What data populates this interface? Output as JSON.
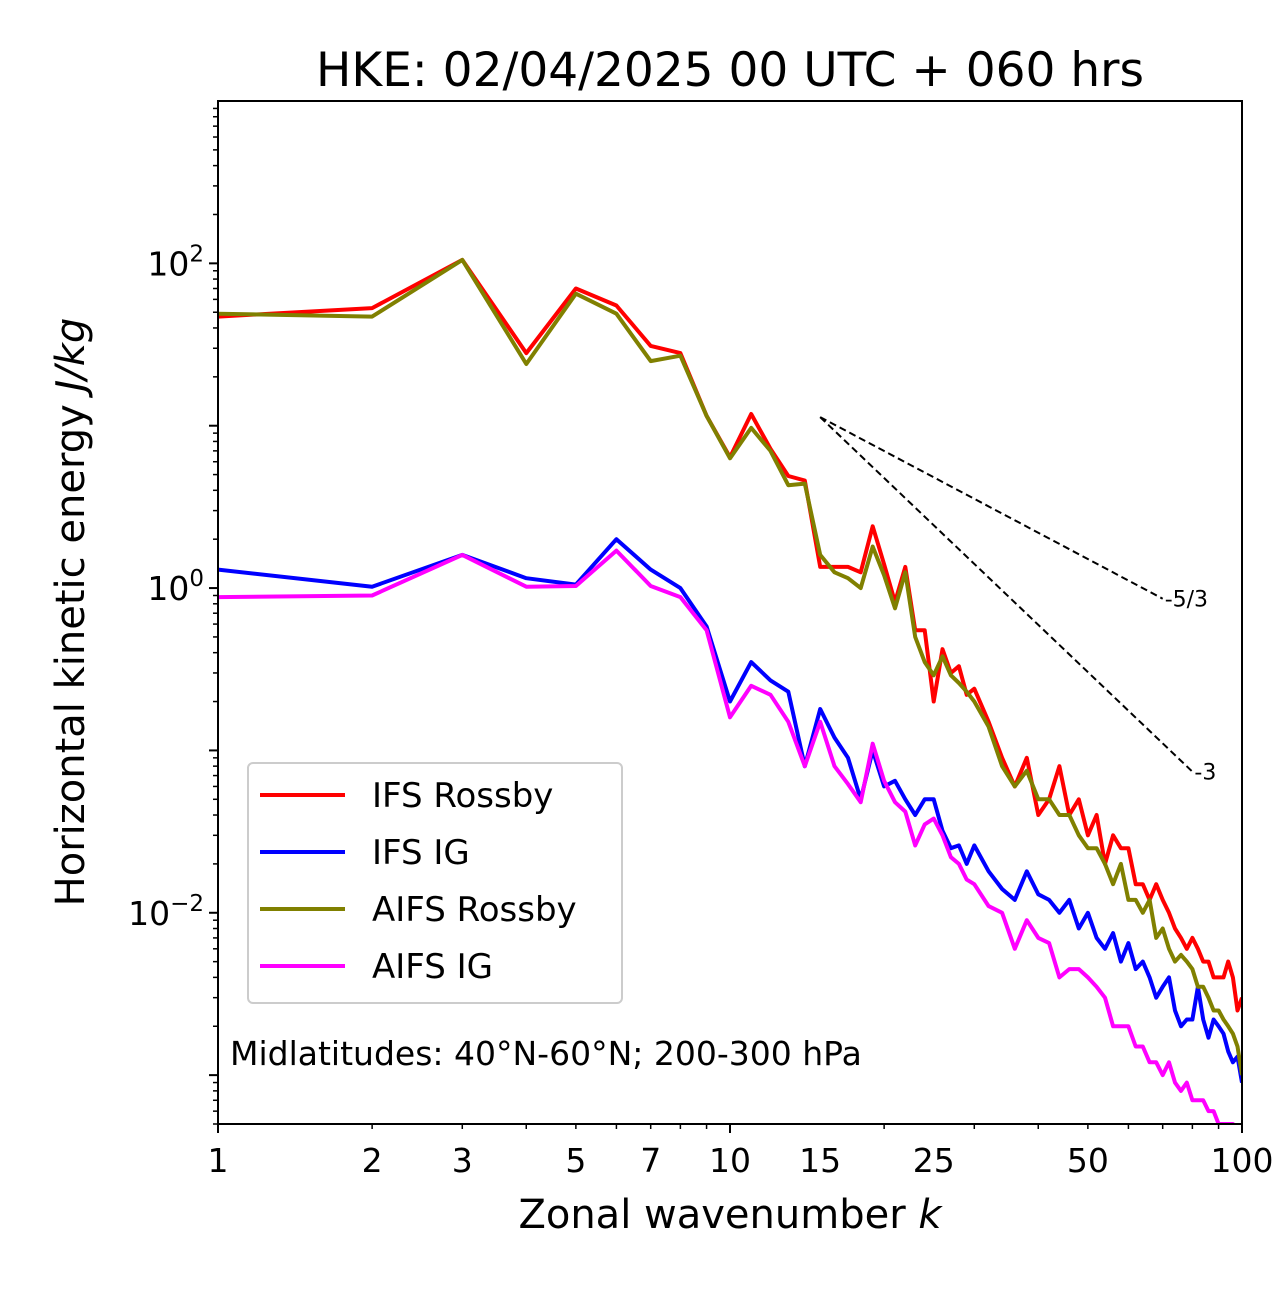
{
  "chart_data": {
    "type": "line",
    "title": "HKE: 02/04/2025 00 UTC + 060 hrs",
    "xlabel": "Zonal wavenumber",
    "xlabel_var": "k",
    "ylabel": "Horizontal kinetic energy",
    "ylabel_unit": "J/kg",
    "xscale": "log",
    "yscale": "log",
    "xlim": [
      1,
      100
    ],
    "ylim": [
      0.0005,
      1000
    ],
    "x_ticks": [
      1,
      2,
      3,
      5,
      7,
      10,
      15,
      25,
      50,
      100
    ],
    "x_tick_labels": [
      "1",
      "2",
      "3",
      "5",
      "7",
      "10",
      "15",
      "25",
      "50",
      "100"
    ],
    "y_ticks": [
      0.01,
      1,
      100
    ],
    "y_tick_labels": [
      {
        "base": "10",
        "exp": "−2"
      },
      {
        "base": "10",
        "exp": "0"
      },
      {
        "base": "10",
        "exp": "2"
      }
    ],
    "annotation": "Midlatitudes: 40°N-60°N; 200-300 hPa",
    "legend_position": "lower-left",
    "reference_lines": [
      {
        "label": "-5/3",
        "slope": -1.6667,
        "x_start": 15,
        "y_start": 11.3,
        "x_end": 70,
        "y_end": 0.86
      },
      {
        "label": "-3",
        "slope": -3,
        "x_start": 15,
        "y_start": 11.3,
        "x_end": 80,
        "y_end": 0.074
      }
    ],
    "series": [
      {
        "name": "IFS Rossby",
        "color": "#ff0000",
        "x": [
          1,
          2,
          3,
          4,
          5,
          6,
          7,
          8,
          9,
          10,
          11,
          12,
          13,
          14,
          15,
          16,
          17,
          18,
          19,
          20,
          21,
          22,
          23,
          24,
          25,
          26,
          27,
          28,
          29,
          30,
          32,
          34,
          36,
          38,
          40,
          42,
          44,
          46,
          48,
          50,
          52,
          54,
          56,
          58,
          60,
          62,
          64,
          66,
          68,
          70,
          72,
          74,
          76,
          78,
          80,
          82,
          84,
          86,
          88,
          90,
          92,
          94,
          96,
          98,
          100
        ],
        "y": [
          47,
          53,
          105,
          28,
          70,
          55,
          31,
          28,
          11.5,
          6.4,
          11.8,
          7.2,
          4.9,
          4.6,
          1.35,
          1.35,
          1.35,
          1.25,
          2.4,
          1.4,
          0.82,
          1.35,
          0.55,
          0.55,
          0.2,
          0.42,
          0.3,
          0.33,
          0.22,
          0.24,
          0.15,
          0.09,
          0.06,
          0.09,
          0.04,
          0.05,
          0.08,
          0.04,
          0.05,
          0.03,
          0.04,
          0.02,
          0.03,
          0.025,
          0.025,
          0.015,
          0.015,
          0.012,
          0.015,
          0.012,
          0.01,
          0.008,
          0.007,
          0.006,
          0.007,
          0.006,
          0.005,
          0.005,
          0.004,
          0.004,
          0.004,
          0.005,
          0.004,
          0.0025,
          0.003
        ]
      },
      {
        "name": "IFS IG",
        "color": "#0000ff",
        "x": [
          1,
          2,
          3,
          4,
          5,
          6,
          7,
          8,
          9,
          10,
          11,
          12,
          13,
          14,
          15,
          16,
          17,
          18,
          19,
          20,
          21,
          22,
          23,
          24,
          25,
          26,
          27,
          28,
          29,
          30,
          32,
          34,
          36,
          38,
          40,
          42,
          44,
          46,
          48,
          50,
          52,
          54,
          56,
          58,
          60,
          62,
          64,
          66,
          68,
          70,
          72,
          74,
          76,
          78,
          80,
          82,
          84,
          86,
          88,
          90,
          92,
          94,
          96,
          98,
          100
        ],
        "y": [
          1.3,
          1.02,
          1.6,
          1.15,
          1.05,
          2.0,
          1.3,
          1.0,
          0.58,
          0.2,
          0.35,
          0.27,
          0.23,
          0.08,
          0.18,
          0.12,
          0.09,
          0.05,
          0.1,
          0.06,
          0.065,
          0.05,
          0.04,
          0.05,
          0.05,
          0.032,
          0.025,
          0.026,
          0.02,
          0.026,
          0.018,
          0.014,
          0.012,
          0.018,
          0.013,
          0.012,
          0.01,
          0.012,
          0.008,
          0.01,
          0.007,
          0.006,
          0.0075,
          0.005,
          0.0065,
          0.0045,
          0.005,
          0.004,
          0.003,
          0.0035,
          0.004,
          0.0025,
          0.002,
          0.0022,
          0.0022,
          0.0035,
          0.0022,
          0.0017,
          0.0022,
          0.002,
          0.0018,
          0.0014,
          0.0012,
          0.0013,
          0.0009
        ]
      },
      {
        "name": "AIFS Rossby",
        "color": "#808000",
        "x": [
          1,
          2,
          3,
          4,
          5,
          6,
          7,
          8,
          9,
          10,
          11,
          12,
          13,
          14,
          15,
          16,
          17,
          18,
          19,
          20,
          21,
          22,
          23,
          24,
          25,
          26,
          27,
          28,
          29,
          30,
          32,
          34,
          36,
          38,
          40,
          42,
          44,
          46,
          48,
          50,
          52,
          54,
          56,
          58,
          60,
          62,
          64,
          66,
          68,
          70,
          72,
          74,
          76,
          78,
          80,
          82,
          84,
          86,
          88,
          90,
          92,
          94,
          96,
          98,
          100
        ],
        "y": [
          49,
          47,
          105,
          24,
          65,
          49,
          25,
          27,
          11.5,
          6.3,
          9.7,
          7.0,
          4.3,
          4.4,
          1.6,
          1.25,
          1.15,
          1.0,
          1.8,
          1.2,
          0.75,
          1.25,
          0.5,
          0.35,
          0.29,
          0.38,
          0.29,
          0.26,
          0.23,
          0.2,
          0.14,
          0.08,
          0.06,
          0.075,
          0.05,
          0.05,
          0.04,
          0.04,
          0.03,
          0.025,
          0.025,
          0.02,
          0.015,
          0.02,
          0.012,
          0.012,
          0.01,
          0.012,
          0.007,
          0.008,
          0.006,
          0.005,
          0.0055,
          0.005,
          0.0045,
          0.0035,
          0.0035,
          0.003,
          0.0025,
          0.0025,
          0.0022,
          0.002,
          0.0018,
          0.0015,
          0.001
        ]
      },
      {
        "name": "AIFS IG",
        "color": "#ff00ff",
        "x": [
          1,
          2,
          3,
          4,
          5,
          6,
          7,
          8,
          9,
          10,
          11,
          12,
          13,
          14,
          15,
          16,
          17,
          18,
          19,
          20,
          21,
          22,
          23,
          24,
          25,
          26,
          27,
          28,
          29,
          30,
          32,
          34,
          36,
          38,
          40,
          42,
          44,
          46,
          48,
          50,
          52,
          54,
          56,
          58,
          60,
          62,
          64,
          66,
          68,
          70,
          72,
          74,
          76,
          78,
          80,
          82,
          84,
          86,
          88,
          90,
          92,
          94,
          96,
          98,
          100
        ],
        "y": [
          0.88,
          0.9,
          1.6,
          1.02,
          1.03,
          1.7,
          1.03,
          0.88,
          0.55,
          0.16,
          0.25,
          0.22,
          0.15,
          0.08,
          0.15,
          0.08,
          0.062,
          0.048,
          0.11,
          0.065,
          0.048,
          0.042,
          0.026,
          0.035,
          0.038,
          0.03,
          0.022,
          0.02,
          0.016,
          0.015,
          0.011,
          0.01,
          0.006,
          0.009,
          0.007,
          0.0065,
          0.004,
          0.0045,
          0.0045,
          0.004,
          0.0035,
          0.003,
          0.002,
          0.002,
          0.002,
          0.0015,
          0.0015,
          0.0012,
          0.0012,
          0.001,
          0.0012,
          0.0009,
          0.0008,
          0.0009,
          0.0007,
          0.0007,
          0.0007,
          0.0006,
          0.0006,
          0.0005,
          0.0005,
          0.0005,
          0.0005,
          0.0004,
          0.0004
        ]
      }
    ]
  }
}
